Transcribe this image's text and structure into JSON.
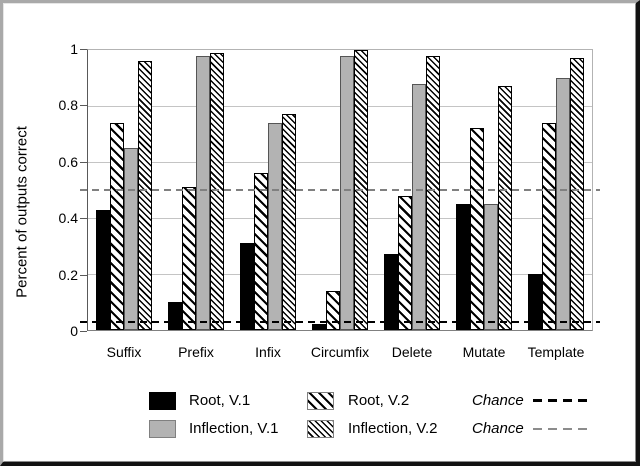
{
  "chart_data": {
    "type": "bar",
    "title": "",
    "xlabel": "",
    "ylabel": "Percent of outputs correct",
    "categories": [
      "Suffix",
      "Prefix",
      "Infix",
      "Circumfix",
      "Delete",
      "Mutate",
      "Template"
    ],
    "series": [
      {
        "name": "Root, V.1",
        "pattern": "solid-black",
        "color": "#000000",
        "values": [
          0.43,
          0.1,
          0.31,
          0.02,
          0.27,
          0.45,
          0.2
        ]
      },
      {
        "name": "Root, V.2",
        "pattern": "hatch-wide",
        "color": "#ffffff",
        "values": [
          0.74,
          0.51,
          0.56,
          0.14,
          0.48,
          0.72,
          0.74
        ]
      },
      {
        "name": "Inflection, V.1",
        "pattern": "solid-gray",
        "color": "#b3b3b3",
        "values": [
          0.65,
          0.98,
          0.74,
          0.98,
          0.88,
          0.45,
          0.9
        ]
      },
      {
        "name": "Inflection, V.2",
        "pattern": "hatch-dense",
        "color": "#ffffff",
        "values": [
          0.96,
          0.99,
          0.77,
          1.0,
          0.98,
          0.87,
          0.97
        ]
      }
    ],
    "ylim": [
      0,
      1
    ],
    "yticks": [
      {
        "label": "1",
        "value": 1
      },
      {
        "label": "0.8",
        "value": 0.8
      },
      {
        "label": "0.6",
        "value": 0.6
      },
      {
        "label": "0.4",
        "value": 0.4
      },
      {
        "label": "0.2",
        "value": 0.2
      },
      {
        "label": "0",
        "value": 0
      }
    ],
    "grid": true,
    "reference_lines": [
      {
        "label": "Chance",
        "value": 0.03,
        "style": "dash-black",
        "color": "#000000"
      },
      {
        "label": "Chance",
        "value": 0.5,
        "style": "dash-gray",
        "color": "#808080"
      }
    ],
    "legend_position": "bottom"
  },
  "legend": {
    "column1": [
      {
        "style": "solid-black",
        "label": "Root, V.1"
      },
      {
        "style": "solid-gray",
        "label": "Inflection, V.1"
      }
    ],
    "column2": [
      {
        "style": "hatch-wide",
        "label": "Root, V.2"
      },
      {
        "style": "hatch-dense",
        "label": "Inflection, V.2"
      }
    ],
    "column3": [
      {
        "style": "dash-black",
        "label": "Chance"
      },
      {
        "style": "dash-gray",
        "label": "Chance"
      }
    ]
  },
  "colors": {
    "bar_black": "#000000",
    "bar_gray": "#b3b3b3",
    "hatch_line": "#000000",
    "gridline": "#c4c4c4",
    "axis": "#595959",
    "chance_upper": "#808080",
    "chance_lower": "#000000",
    "background": "#ffffff"
  }
}
